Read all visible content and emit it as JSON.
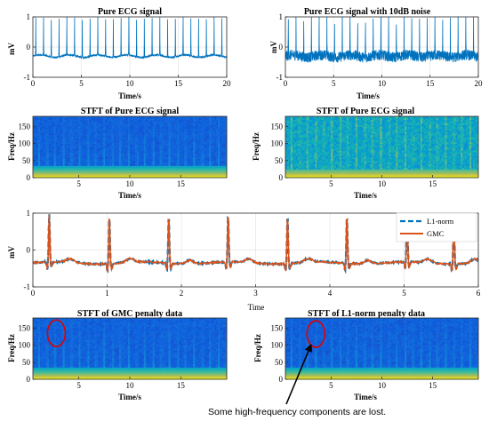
{
  "chart_data": [
    {
      "type": "line",
      "title": "Pure ECG signal",
      "xlabel": "Time/s",
      "ylabel": "mV",
      "xlim": [
        0,
        20
      ],
      "ylim": [
        -1,
        1
      ],
      "xticks": [
        "0",
        "5",
        "10",
        "15",
        "20"
      ],
      "yticks": [
        "1",
        "0",
        "-1"
      ],
      "grid": true,
      "beat_period_s": 0.8,
      "peak_mV": 0.95,
      "baseline_mV": -0.3,
      "noise": false,
      "color": "#0072BD"
    },
    {
      "type": "line",
      "title": "Pure ECG signal with 10dB noise",
      "xlabel": "Time/s",
      "ylabel": "mV",
      "xlim": [
        0,
        20
      ],
      "ylim": [
        -1,
        1
      ],
      "xticks": [
        "0",
        "5",
        "10",
        "15",
        "20"
      ],
      "yticks": [
        "1",
        "0",
        "-1"
      ],
      "grid": true,
      "beat_period_s": 0.8,
      "peak_mV": 0.95,
      "baseline_mV": -0.3,
      "noise": true,
      "color": "#0072BD"
    },
    {
      "type": "heatmap",
      "title": "STFT of Pure ECG signal",
      "xlabel": "Time/s",
      "ylabel": "Freq/Hz",
      "xlim": [
        0.5,
        19.5
      ],
      "ylim": [
        0,
        180
      ],
      "xticks": [
        "5",
        "10",
        "15"
      ],
      "yticks": [
        "150",
        "100",
        "50",
        "0"
      ],
      "colormap": "parula",
      "noise": false
    },
    {
      "type": "heatmap",
      "title": "STFT of Pure ECG signal",
      "xlabel": "Time/s",
      "ylabel": "Freq/Hz",
      "xlim": [
        0.5,
        19.5
      ],
      "ylim": [
        0,
        180
      ],
      "xticks": [
        "5",
        "10",
        "15"
      ],
      "yticks": [
        "150",
        "100",
        "50",
        "0"
      ],
      "colormap": "parula",
      "noise": true
    },
    {
      "type": "line",
      "title": "",
      "xlabel": "Time",
      "ylabel": "mV",
      "xlim": [
        0,
        6
      ],
      "ylim": [
        -1,
        1
      ],
      "xticks": [
        "0",
        "1",
        "2",
        "3",
        "4",
        "5",
        "6"
      ],
      "yticks": [
        "1",
        "0",
        "-1"
      ],
      "grid": true,
      "beat_times_s": [
        0.22,
        1.03,
        1.83,
        2.63,
        3.43,
        4.23,
        5.04,
        5.67
      ],
      "peak_mV": 0.95,
      "baseline_mV": -0.35,
      "legend_position": "top-right",
      "series": [
        {
          "name": "L1-norm",
          "color": "#0072BD",
          "style": "dashed"
        },
        {
          "name": "GMC",
          "color": "#D95319",
          "style": "solid"
        }
      ]
    },
    {
      "type": "heatmap",
      "title": "STFT of GMC penalty data",
      "xlabel": "Time/s",
      "ylabel": "Freq/Hz",
      "xlim": [
        0.5,
        19.5
      ],
      "ylim": [
        0,
        180
      ],
      "xticks": [
        "5",
        "10",
        "15"
      ],
      "yticks": [
        "150",
        "100",
        "50",
        "0"
      ],
      "colormap": "parula",
      "noise": false,
      "highlight_circle": {
        "t_s": 2.8,
        "f_hz": 135,
        "color": "#E00000"
      }
    },
    {
      "type": "heatmap",
      "title": "STFT of L1-norm penalty data",
      "xlabel": "Time/s",
      "ylabel": "Freq/Hz",
      "xlim": [
        0.5,
        19.5
      ],
      "ylim": [
        0,
        180
      ],
      "xticks": [
        "5",
        "10",
        "15"
      ],
      "yticks": [
        "150",
        "100",
        "50",
        "0"
      ],
      "colormap": "parula",
      "noise": false,
      "highlight_circle": {
        "t_s": 3.5,
        "f_hz": 133,
        "color": "#E00000"
      }
    }
  ],
  "annotation": {
    "text": "Some high-frequency components are lost.",
    "arrow_target_panel": 6,
    "arrow_target": {
      "t_s": 3.0,
      "f_hz": 110
    }
  }
}
